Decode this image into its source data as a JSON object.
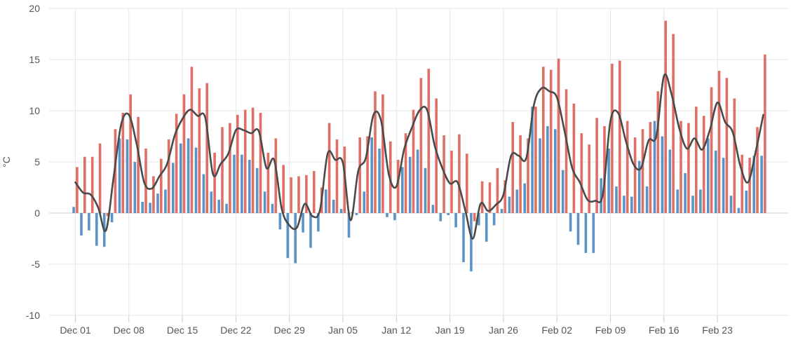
{
  "chart_data": {
    "type": "bar",
    "ylabel": "°C",
    "ylim": [
      -10,
      20
    ],
    "yticks": [
      20,
      15,
      10,
      5,
      0,
      -5,
      -10
    ],
    "ytick_labels": [
      "20",
      "15",
      "10",
      "5",
      "0",
      "-5",
      "-10"
    ],
    "xtick_labels": [
      "Dec 01",
      "Dec 08",
      "Dec 15",
      "Dec 22",
      "Dec 29",
      "Jan 05",
      "Jan 12",
      "Jan 19",
      "Jan 26",
      "Feb 02",
      "Feb 09",
      "Feb 16",
      "Feb 23"
    ],
    "start_date": "Dec 01",
    "grid": true,
    "colors": {
      "max": "#e06f66",
      "min": "#5b93c7",
      "avg": "#4a4a4a",
      "grid": "#e6e6e6",
      "axis": "#cccccc"
    },
    "series": [
      {
        "key": "max",
        "values": [
          4.5,
          5.5,
          5.5,
          6.8,
          -0.3,
          8.2,
          9.8,
          11.6,
          9.4,
          6.3,
          3.6,
          5.3,
          7.2,
          9.7,
          11.6,
          14.3,
          12.2,
          12.7,
          5.9,
          8.4,
          8.8,
          9.6,
          10.1,
          10.3,
          9.8,
          5.9,
          7.3,
          4.7,
          3.5,
          3.6,
          3.7,
          4.1,
          2.5,
          8.8,
          7.2,
          6.5,
          0.1,
          7.4,
          7.5,
          11.9,
          11.6,
          7.0,
          5.2,
          7.8,
          10.1,
          13.2,
          14.1,
          11.2,
          7.6,
          6.1,
          7.7,
          5.8,
          -0.8,
          3.1,
          3.0,
          4.4,
          3.2,
          8.9,
          7.6,
          7.3,
          10.4,
          14.3,
          14.0,
          15.1,
          12.1,
          10.7,
          7.8,
          6.7,
          9.3,
          8.5,
          14.6,
          14.9,
          9.0,
          7.4,
          8.2,
          8.9,
          11.9,
          18.8,
          17.5,
          9.0,
          8.8,
          10.4,
          9.5,
          12.3,
          13.9,
          13.2,
          11.2,
          5.7,
          5.4,
          8.4,
          15.5
        ]
      },
      {
        "key": "min",
        "values": [
          0.6,
          -2.2,
          -1.7,
          -3.2,
          -3.3,
          -0.9,
          7.3,
          7.2,
          5.0,
          1.1,
          1.0,
          1.9,
          2.3,
          4.9,
          6.8,
          7.3,
          6.4,
          3.8,
          2.1,
          1.3,
          0.9,
          5.7,
          5.7,
          5.2,
          4.4,
          2.1,
          0.9,
          -1.6,
          -4.4,
          -4.9,
          -1.9,
          -3.4,
          -1.8,
          2.3,
          1.3,
          0.4,
          -2.4,
          -0.2,
          2.1,
          7.4,
          6.3,
          -0.4,
          -0.7,
          4.5,
          5.5,
          6.2,
          4.4,
          0.8,
          -0.8,
          -0.2,
          -1.4,
          -4.8,
          -5.7,
          -1.2,
          -2.8,
          -1.2,
          0.4,
          1.6,
          2.3,
          2.9,
          10.4,
          7.3,
          8.5,
          8.2,
          4.2,
          -1.8,
          -3.1,
          -3.9,
          -3.9,
          3.4,
          6.3,
          2.6,
          1.7,
          1.6,
          5.1,
          2.6,
          9.0,
          7.5,
          6.2,
          2.3,
          3.9,
          1.7,
          2.3,
          7.3,
          6.1,
          5.4,
          1.7,
          0.5,
          2.2,
          5.6,
          5.6
        ]
      },
      {
        "key": "avg",
        "values": [
          3.0,
          2.0,
          1.8,
          0.5,
          -1.7,
          3.5,
          8.7,
          9.6,
          6.8,
          3.0,
          2.4,
          3.6,
          4.8,
          7.6,
          9.2,
          10.1,
          9.5,
          9.3,
          3.8,
          4.8,
          5.8,
          8.1,
          8.1,
          7.8,
          8.0,
          4.4,
          5.2,
          0.4,
          -1.2,
          -1.4,
          0.9,
          -0.3,
          0.3,
          5.8,
          5.2,
          4.9,
          -0.7,
          4.1,
          5.4,
          9.6,
          9.0,
          3.8,
          2.6,
          6.2,
          8.3,
          10.0,
          10.1,
          6.6,
          4.4,
          2.9,
          3.0,
          0.3,
          -2.5,
          0.9,
          0.2,
          0.8,
          1.8,
          5.6,
          5.6,
          5.4,
          10.6,
          12.2,
          11.9,
          11.3,
          8.0,
          4.4,
          3.0,
          1.3,
          1.2,
          1.8,
          9.0,
          9.8,
          7.1,
          4.8,
          4.4,
          7.1,
          7.5,
          13.4,
          11.6,
          8.3,
          6.3,
          7.3,
          6.2,
          8.1,
          10.8,
          8.9,
          7.9,
          4.6,
          3.0,
          6.0,
          9.6
        ]
      }
    ]
  }
}
